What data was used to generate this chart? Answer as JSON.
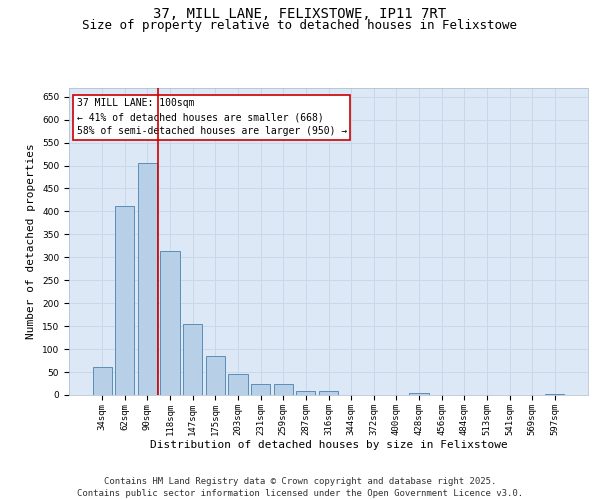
{
  "title": "37, MILL LANE, FELIXSTOWE, IP11 7RT",
  "subtitle": "Size of property relative to detached houses in Felixstowe",
  "xlabel": "Distribution of detached houses by size in Felixstowe",
  "ylabel": "Number of detached properties",
  "categories": [
    "34sqm",
    "62sqm",
    "90sqm",
    "118sqm",
    "147sqm",
    "175sqm",
    "203sqm",
    "231sqm",
    "259sqm",
    "287sqm",
    "316sqm",
    "344sqm",
    "372sqm",
    "400sqm",
    "428sqm",
    "456sqm",
    "484sqm",
    "513sqm",
    "541sqm",
    "569sqm",
    "597sqm"
  ],
  "values": [
    62,
    412,
    506,
    313,
    155,
    84,
    46,
    25,
    25,
    8,
    8,
    0,
    0,
    0,
    5,
    0,
    0,
    0,
    0,
    0,
    3
  ],
  "bar_color": "#b8cfe8",
  "bar_edge_color": "#5b8db8",
  "grid_color": "#c8d8ea",
  "background_color": "#dce8f5",
  "vline_color": "#cc0000",
  "annotation_text": "37 MILL LANE: 100sqm\n← 41% of detached houses are smaller (668)\n58% of semi-detached houses are larger (950) →",
  "annotation_box_facecolor": "#ffffff",
  "annotation_box_edgecolor": "#cc0000",
  "ylim": [
    0,
    670
  ],
  "yticks": [
    0,
    50,
    100,
    150,
    200,
    250,
    300,
    350,
    400,
    450,
    500,
    550,
    600,
    650
  ],
  "footnote": "Contains HM Land Registry data © Crown copyright and database right 2025.\nContains public sector information licensed under the Open Government Licence v3.0.",
  "title_fontsize": 10,
  "subtitle_fontsize": 9,
  "xlabel_fontsize": 8,
  "ylabel_fontsize": 8,
  "tick_fontsize": 6.5,
  "annotation_fontsize": 7,
  "footnote_fontsize": 6.5
}
